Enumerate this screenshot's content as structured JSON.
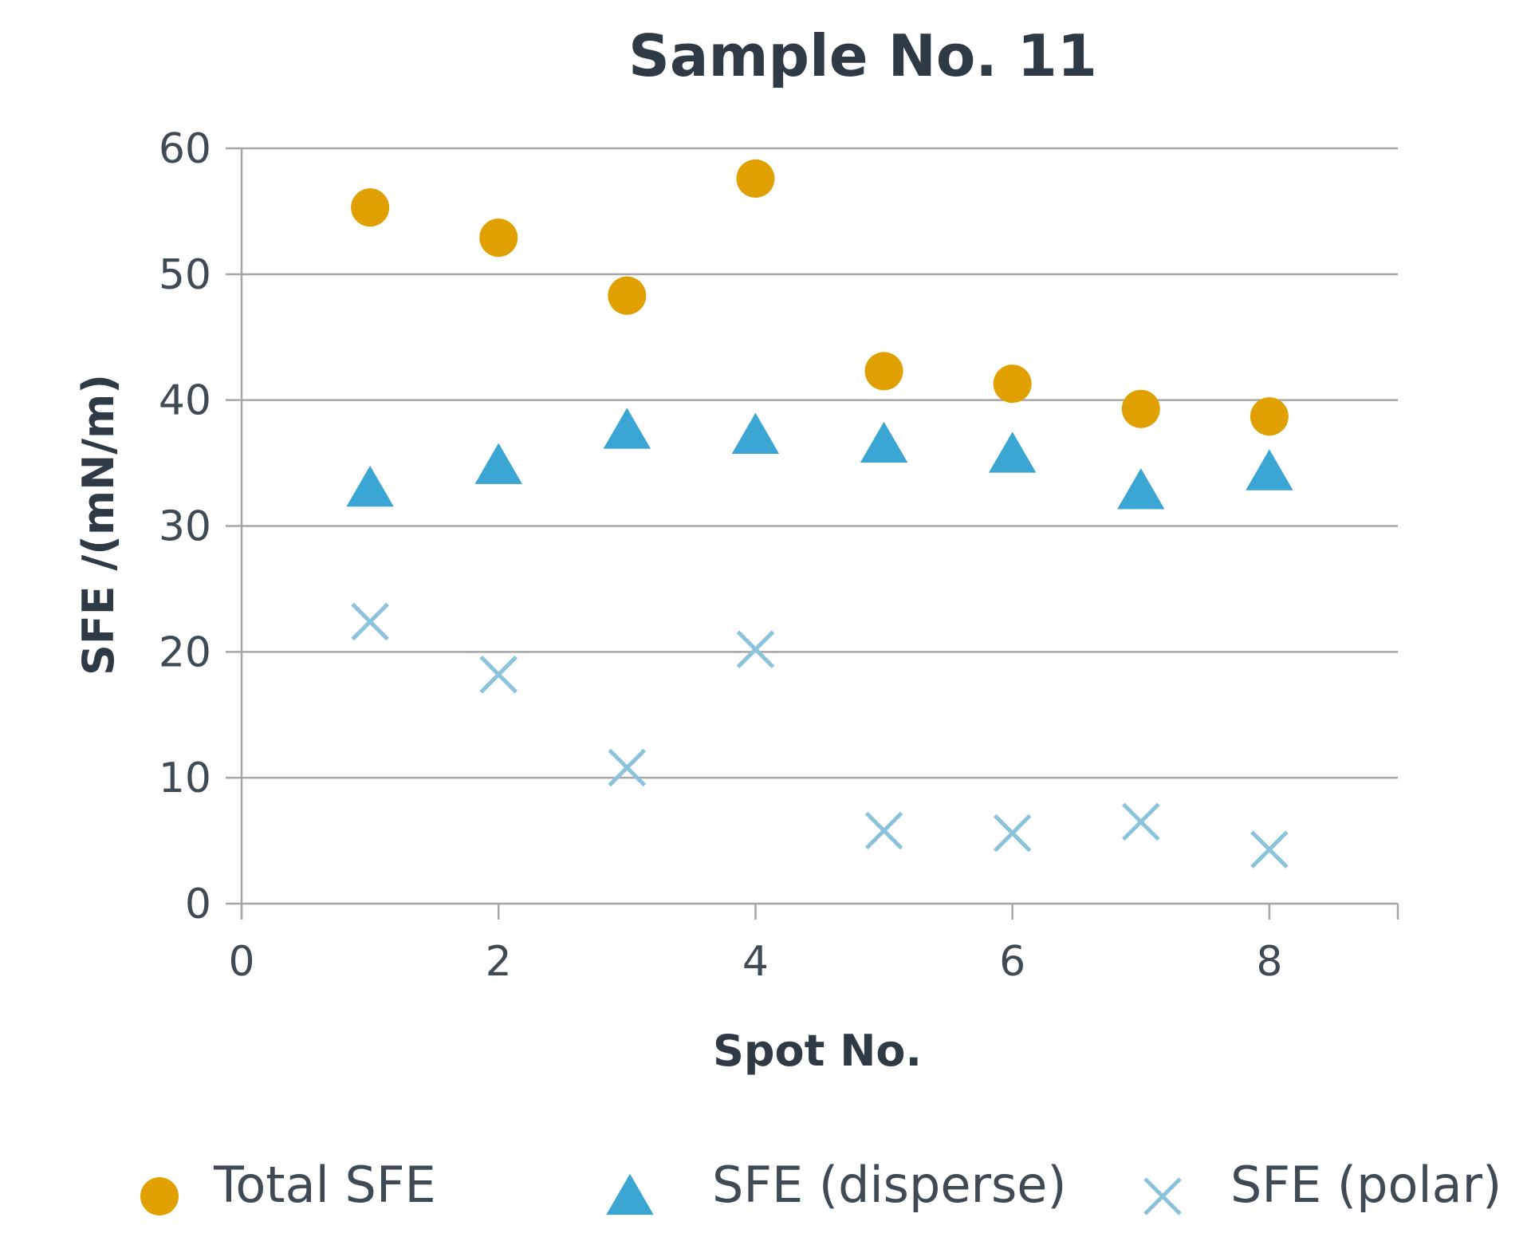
{
  "chart_data": {
    "type": "scatter",
    "title": "Sample No. 11",
    "xlabel": "Spot No.",
    "ylabel": "SFE /(mN/m)",
    "xlim": [
      0,
      9
    ],
    "ylim": [
      0,
      60
    ],
    "xticks": [
      0,
      2,
      4,
      6,
      8
    ],
    "yticks": [
      0,
      10,
      20,
      30,
      40,
      50,
      60
    ],
    "grid": "horizontal",
    "legend": "bottom",
    "series": [
      {
        "name": "Total SFE",
        "marker": "circle",
        "color": "#e0a100",
        "x": [
          1,
          2,
          3,
          4,
          5,
          6,
          7,
          8
        ],
        "y": [
          55.3,
          52.9,
          48.3,
          57.6,
          42.3,
          41.3,
          39.3,
          38.7
        ]
      },
      {
        "name": "SFE (disperse)",
        "marker": "triangle",
        "color": "#3ba6d4",
        "x": [
          1,
          2,
          3,
          4,
          5,
          6,
          7,
          8
        ],
        "y": [
          33.0,
          34.8,
          37.6,
          37.2,
          36.5,
          35.7,
          32.8,
          34.3
        ]
      },
      {
        "name": "SFE (polar)",
        "marker": "x",
        "color": "#8cc3dc",
        "x": [
          1,
          2,
          3,
          4,
          5,
          6,
          7,
          8
        ],
        "y": [
          22.4,
          18.2,
          10.8,
          20.2,
          5.8,
          5.6,
          6.5,
          4.3
        ]
      }
    ]
  }
}
